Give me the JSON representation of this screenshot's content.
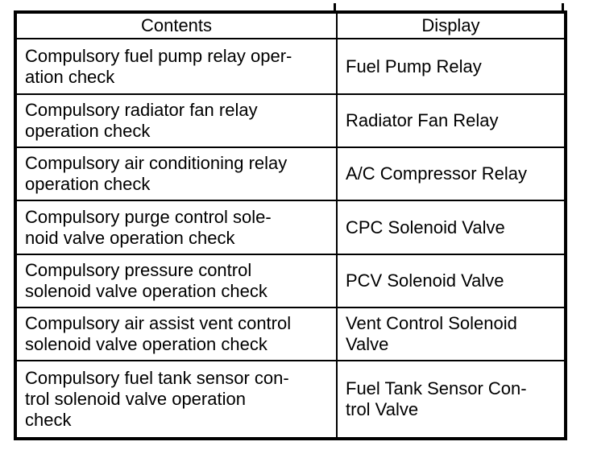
{
  "colors": {
    "background": "#ffffff",
    "border": "#000000",
    "text": "#000000"
  },
  "table": {
    "headers": {
      "contents": "Contents",
      "display": "Display"
    },
    "rows": [
      {
        "contents": "Compulsory fuel pump relay oper-\nation check",
        "display": "Fuel Pump Relay"
      },
      {
        "contents": "Compulsory radiator fan relay\noperation check",
        "display": "Radiator Fan Relay"
      },
      {
        "contents": "Compulsory air conditioning relay\noperation check",
        "display": "A/C Compressor Relay"
      },
      {
        "contents": "Compulsory purge control sole-\nnoid valve operation check",
        "display": "CPC Solenoid Valve"
      },
      {
        "contents": "Compulsory pressure control\nsolenoid valve operation check",
        "display": "PCV Solenoid Valve"
      },
      {
        "contents": "Compulsory air assist vent control\nsolenoid valve operation check",
        "display": "Vent Control Solenoid\nValve"
      },
      {
        "contents": "Compulsory fuel tank sensor con-\ntrol solenoid valve operation\ncheck",
        "display": "Fuel Tank Sensor Con-\ntrol Valve"
      }
    ]
  }
}
